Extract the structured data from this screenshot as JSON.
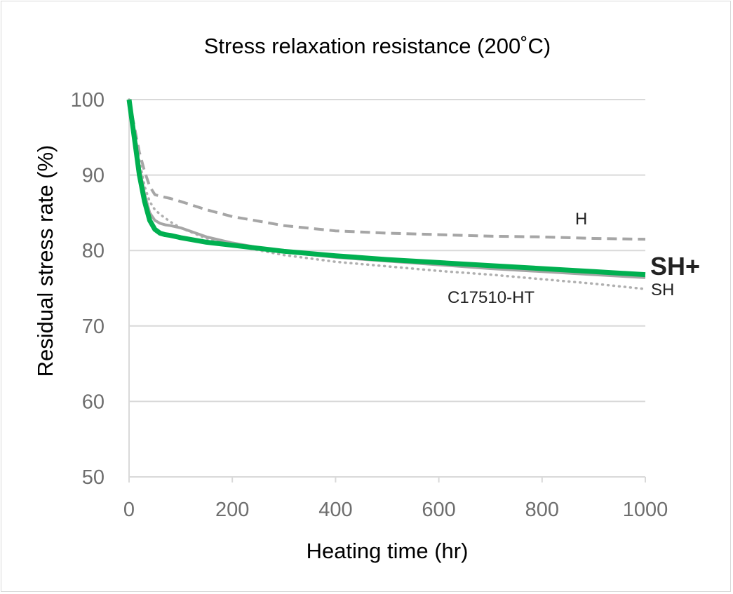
{
  "chart_data": {
    "type": "line",
    "title": "Stress relaxation resistance (200˚C)",
    "xlabel": "Heating time (hr)",
    "ylabel": "Residual stress rate (%)",
    "xlim": [
      0,
      1000
    ],
    "ylim": [
      50,
      100
    ],
    "xticks": [
      0,
      200,
      400,
      600,
      800,
      1000
    ],
    "yticks": [
      50,
      60,
      70,
      80,
      90,
      100
    ],
    "grid": "horizontal",
    "legend": "none (labels placed next to line ends)",
    "series": [
      {
        "name": "H",
        "color": "#a6a6a6",
        "style": "dashed",
        "x": [
          0,
          10,
          20,
          30,
          40,
          50,
          60,
          80,
          100,
          150,
          200,
          300,
          400,
          500,
          600,
          700,
          800,
          900,
          1000
        ],
        "y": [
          100,
          96.5,
          93,
          90.5,
          88.5,
          87.4,
          87.2,
          86.9,
          86.5,
          85.4,
          84.5,
          83.3,
          82.6,
          82.3,
          82.1,
          81.9,
          81.8,
          81.6,
          81.5
        ]
      },
      {
        "name": "SH+",
        "color": "#00b050",
        "style": "solid-bold",
        "x": [
          0,
          10,
          20,
          30,
          40,
          50,
          60,
          70,
          80,
          100,
          150,
          200,
          300,
          400,
          500,
          600,
          700,
          800,
          900,
          1000
        ],
        "y": [
          100,
          95,
          90,
          86.5,
          84,
          82.8,
          82.3,
          82.1,
          82,
          81.7,
          81.1,
          80.7,
          79.9,
          79.3,
          78.8,
          78.4,
          78,
          77.6,
          77.2,
          76.8
        ]
      },
      {
        "name": "SH",
        "color": "#a6a6a6",
        "style": "solid",
        "x": [
          0,
          10,
          20,
          30,
          40,
          50,
          60,
          70,
          80,
          100,
          150,
          200,
          300,
          400,
          500,
          600,
          700,
          800,
          900,
          1000
        ],
        "y": [
          100,
          95.5,
          91,
          87.5,
          85,
          84,
          83.6,
          83.4,
          83.3,
          83,
          81.8,
          81,
          79.8,
          79.1,
          78.6,
          78.1,
          77.6,
          77.2,
          76.8,
          76.4
        ]
      },
      {
        "name": "C17510-HT",
        "color": "#b0b0b0",
        "style": "dotted",
        "x": [
          0,
          10,
          20,
          30,
          40,
          50,
          60,
          80,
          100,
          150,
          200,
          300,
          400,
          500,
          600,
          700,
          800,
          900,
          1000
        ],
        "y": [
          100,
          96,
          92,
          88.5,
          86.5,
          85.4,
          84.8,
          83.8,
          83,
          81.6,
          80.7,
          79.4,
          78.5,
          77.9,
          77.3,
          76.8,
          76.2,
          75.6,
          74.9
        ]
      }
    ]
  }
}
